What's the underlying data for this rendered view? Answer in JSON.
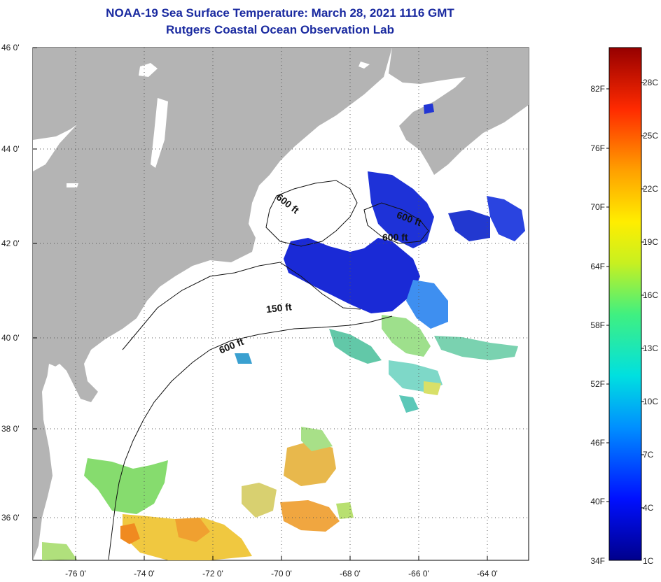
{
  "title": "NOAA-19 Sea Surface Temperature:  March 28, 2021 1116 GMT",
  "subtitle": "Rutgers Coastal Ocean Observation Lab",
  "lat_labels": [
    "46 0'",
    "44 0'",
    "42 0'",
    "40 0'",
    "38 0'",
    "36 0'"
  ],
  "lon_labels": [
    "-76 0'",
    "-74 0'",
    "-72 0'",
    "-70 0'",
    "-68 0'",
    "-66 0'",
    "-64 0'"
  ],
  "contour_labels": [
    "600 ft",
    "600 ft",
    "600 ft",
    "150 ft",
    "600 ft"
  ],
  "colorbar": {
    "fahrenheit": [
      "82F",
      "76F",
      "70F",
      "64F",
      "58F",
      "52F",
      "46F",
      "40F",
      "34F"
    ],
    "celsius": [
      "28C",
      "25C",
      "22C",
      "19C",
      "16C",
      "13C",
      "10C",
      "7C",
      "4C",
      "1C"
    ]
  },
  "colors": {
    "land": "#b4b4b4",
    "title": "#1a2aa0",
    "cold": "#1a2ad6",
    "warm": "#f08a20"
  }
}
